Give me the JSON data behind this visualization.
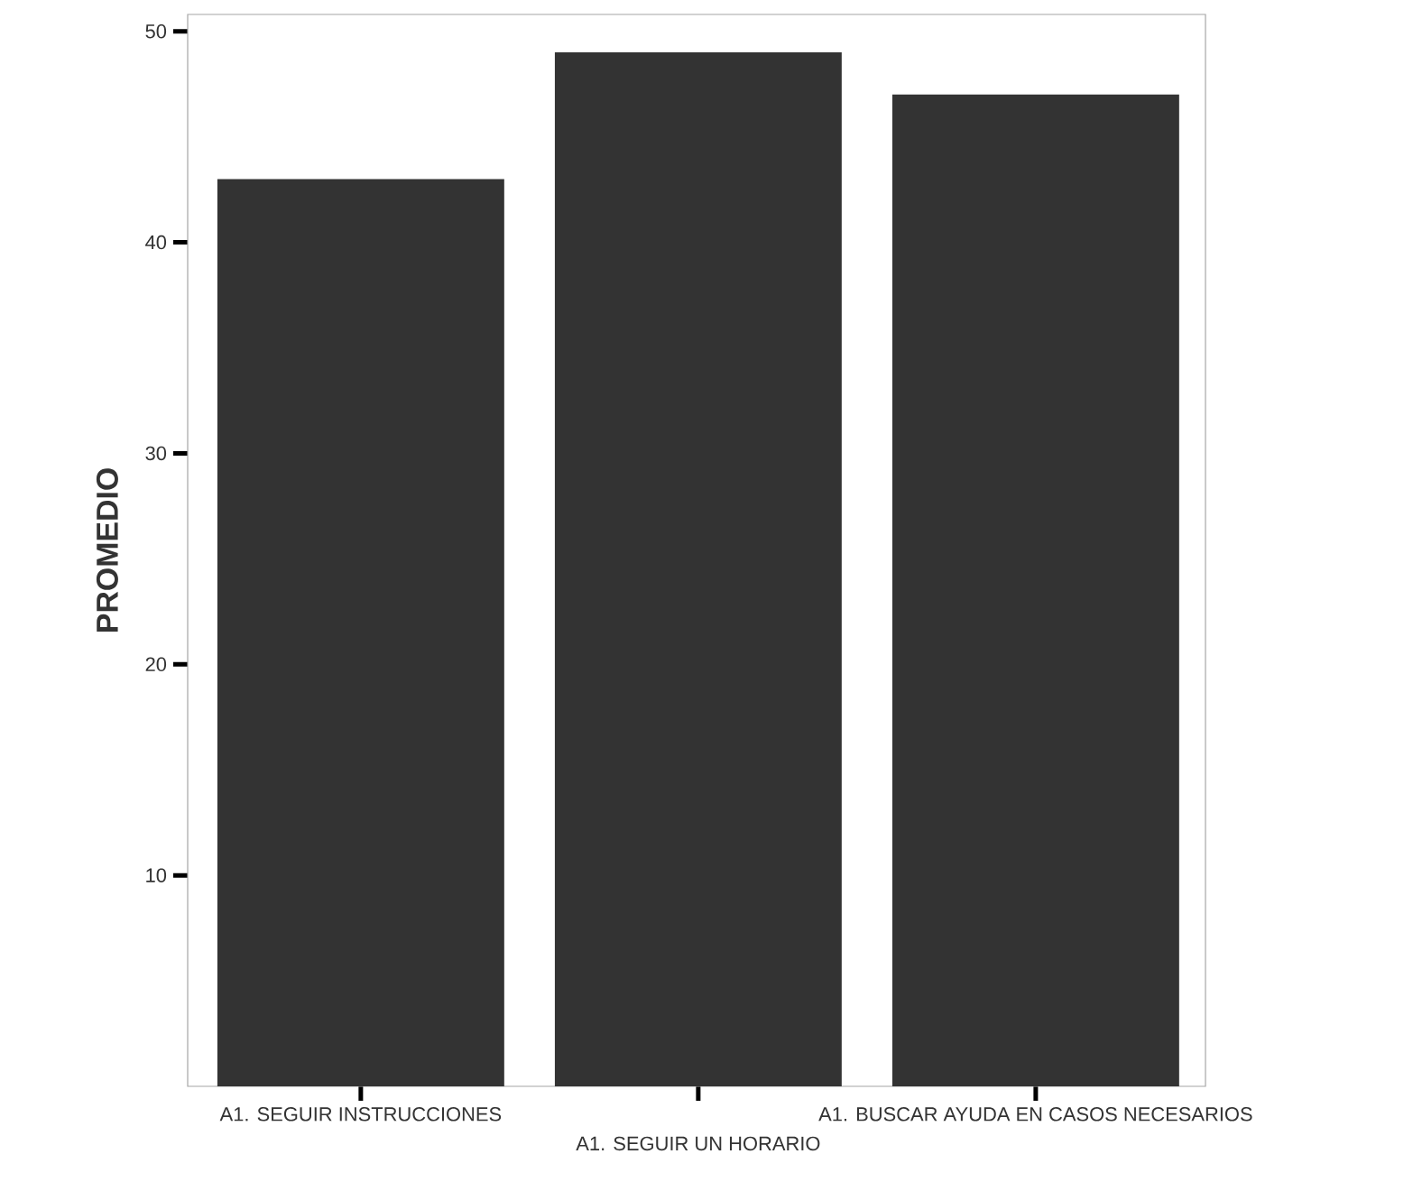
{
  "chart_data": {
    "type": "bar",
    "ylabel": "PROMEDIO",
    "categories": [
      "A1. SEGUIR INSTRUCCIONES",
      "A1. SEGUIR UN HORARIO",
      "A1. BUSCAR AYUDA EN CASOS NECESARIOS"
    ],
    "values": [
      43,
      49,
      47
    ],
    "color": "#333333",
    "ylim": [
      0,
      50.8
    ],
    "yticks": [
      10,
      20,
      30,
      40,
      50
    ]
  }
}
